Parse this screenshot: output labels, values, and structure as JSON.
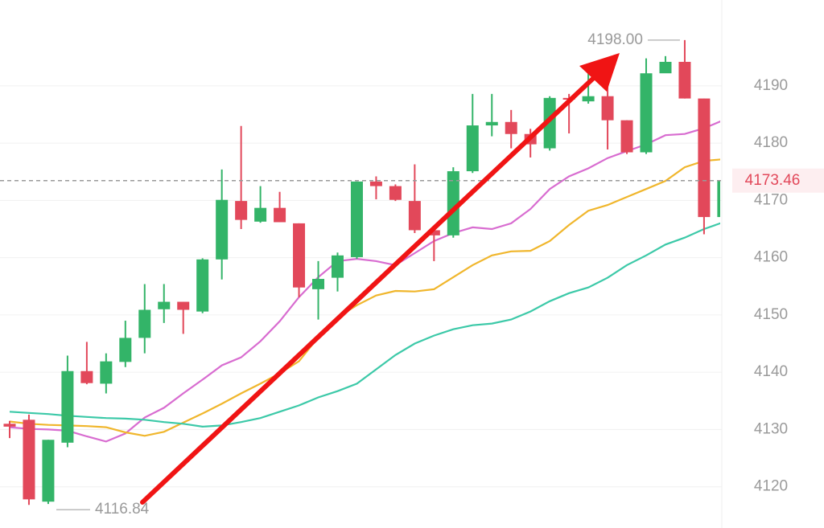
{
  "chart_data": {
    "type": "candlestick",
    "open": [
      4131.0,
      4131.7,
      4117.4,
      4127.7,
      4140.2,
      4138.0,
      4141.8,
      4146.0,
      4151.0,
      4152.3,
      4150.6,
      4159.7,
      4169.9,
      4166.3,
      4168.7,
      4166.0,
      4154.5,
      4156.5,
      4160.1,
      4173.3,
      4172.5,
      4169.9,
      4164.8,
      4163.9,
      4175.1,
      4183.1,
      4183.7,
      4181.6,
      4179.1,
      4187.9,
      4187.3,
      4188.2,
      4184.0,
      4178.4,
      4192.2,
      4194.2,
      4187.8,
      4167.1
    ],
    "high": [
      4131.5,
      4132.6,
      4128.2,
      4142.9,
      4145.3,
      4143.3,
      4149.0,
      4155.4,
      4155.4,
      4152.3,
      4159.9,
      4175.4,
      4183.0,
      4172.5,
      4171.5,
      4166.0,
      4159.4,
      4160.9,
      4173.3,
      4174.2,
      4172.8,
      4176.3,
      4165.5,
      4175.8,
      4188.6,
      4188.6,
      4185.8,
      4182.5,
      4188.2,
      4188.6,
      4193.8,
      4191.1,
      4184.0,
      4194.8,
      4195.2,
      4198.0,
      4187.8,
      4173.46
    ],
    "low": [
      4128.5,
      4116.84,
      4117.0,
      4126.9,
      4137.9,
      4136.3,
      4140.9,
      4143.3,
      4148.6,
      4146.7,
      4150.3,
      4156.2,
      4165.0,
      4166.1,
      4166.2,
      4153.1,
      4149.2,
      4154.1,
      4159.8,
      4170.2,
      4169.9,
      4164.3,
      4159.4,
      4163.5,
      4174.8,
      4181.2,
      4179.1,
      4177.5,
      4178.7,
      4181.7,
      4186.9,
      4178.9,
      4178.1,
      4178.1,
      4192.8,
      4187.8,
      4164.1,
      4167.1
    ],
    "close": [
      4130.5,
      4117.8,
      4128.2,
      4140.2,
      4138.1,
      4141.9,
      4146.0,
      4150.9,
      4152.3,
      4150.9,
      4159.7,
      4170.1,
      4166.6,
      4168.7,
      4166.2,
      4154.8,
      4156.3,
      4160.4,
      4173.3,
      4172.5,
      4170.1,
      4164.8,
      4163.9,
      4175.1,
      4183.1,
      4183.7,
      4181.6,
      4179.8,
      4187.9,
      4187.6,
      4188.2,
      4184.0,
      4178.4,
      4192.2,
      4194.2,
      4187.8,
      4167.1,
      4173.46
    ],
    "up_color": "#33b468",
    "down_color": "#e2485a",
    "lines": [
      {
        "color": "#d86cd0",
        "values": [
          4130.4,
          4130.1,
          4130.0,
          4129.8,
          4128.8,
          4127.9,
          4129.3,
          4132.1,
          4133.8,
          4136.3,
          4138.7,
          4141.2,
          4142.6,
          4145.4,
          4148.9,
          4153.1,
          4156.6,
          4159.4,
          4159.8,
          4159.4,
          4158.7,
          4160.8,
          4162.9,
          4164.3,
          4165.3,
          4165.0,
          4166.0,
          4168.5,
          4172.0,
          4174.2,
          4175.6,
          4177.4,
          4178.6,
          4179.8,
          4181.4,
          4181.6,
          4182.6,
          4184.0
        ]
      },
      {
        "color": "#f0b62c",
        "values": [
          4131.4,
          4131.0,
          4130.8,
          4130.7,
          4130.6,
          4130.4,
          4129.5,
          4128.9,
          4129.6,
          4131.2,
          4132.8,
          4134.5,
          4136.3,
          4138.0,
          4139.8,
          4141.9,
          4146.1,
          4149.6,
          4151.7,
          4153.4,
          4154.2,
          4154.1,
          4154.5,
          4156.6,
          4158.7,
          4160.4,
          4161.1,
          4161.2,
          4162.9,
          4165.7,
          4168.2,
          4169.2,
          4170.6,
          4172.0,
          4173.4,
          4175.8,
          4176.9,
          4177.2
        ]
      },
      {
        "color": "#3cc9a8",
        "values": [
          4133.1,
          4132.9,
          4132.7,
          4132.4,
          4132.2,
          4132.0,
          4131.9,
          4131.7,
          4131.3,
          4131.0,
          4130.5,
          4130.7,
          4131.3,
          4132.0,
          4133.1,
          4134.2,
          4135.6,
          4136.7,
          4138.0,
          4140.5,
          4143.0,
          4145.0,
          4146.4,
          4147.5,
          4148.2,
          4148.5,
          4149.2,
          4150.6,
          4152.4,
          4153.8,
          4154.8,
          4156.5,
          4158.7,
          4160.4,
          4162.3,
          4163.5,
          4165.0,
          4166.2
        ]
      }
    ],
    "ylim": [
      4112.8,
      4205
    ],
    "yticks": [
      4120,
      4130,
      4140,
      4150,
      4160,
      4170,
      4180,
      4190
    ],
    "grid": true,
    "high_label": "4198.00",
    "low_label": "4116.84",
    "last_price": {
      "value": 4173.46,
      "label": "4173.46"
    }
  }
}
